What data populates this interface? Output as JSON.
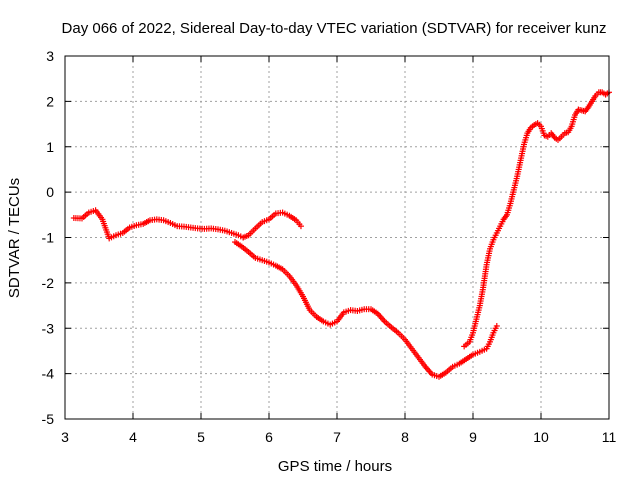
{
  "chart_data": {
    "type": "scatter",
    "title": "Day 066 of 2022, Sidereal Day-to-day VTEC variation (SDTVAR) for receiver kunz",
    "xlabel": "GPS time / hours",
    "ylabel": "SDTVAR / TECUs",
    "xlim": [
      3,
      11
    ],
    "ylim": [
      -5,
      3
    ],
    "xticks": [
      "3",
      "4",
      "5",
      "6",
      "7",
      "8",
      "9",
      "10",
      "11"
    ],
    "yticks": [
      "-5",
      "-4",
      "-3",
      "-2",
      "-1",
      "0",
      "1",
      "2",
      "3"
    ],
    "grid": true,
    "marker": "plus",
    "color": "#ff0000",
    "series": [
      {
        "x": [
          3.13,
          3.25,
          3.35,
          3.45,
          3.55,
          3.65,
          3.75,
          3.85,
          3.95,
          4.05,
          4.15,
          4.25,
          4.35,
          4.45,
          4.55,
          4.65,
          4.75,
          4.85,
          4.95,
          5.05,
          5.15,
          5.25,
          5.35,
          5.45,
          5.55,
          5.62
        ],
        "y": [
          -0.57,
          -0.58,
          -0.45,
          -0.4,
          -0.6,
          -1.02,
          -0.95,
          -0.9,
          -0.78,
          -0.73,
          -0.7,
          -0.62,
          -0.6,
          -0.62,
          -0.68,
          -0.75,
          -0.76,
          -0.78,
          -0.8,
          -0.81,
          -0.8,
          -0.82,
          -0.85,
          -0.9,
          -0.95,
          -1.0
        ]
      },
      {
        "x": [
          5.62,
          5.7,
          5.8,
          5.9,
          6.0,
          6.1,
          6.2,
          6.3,
          6.4,
          6.47
        ],
        "y": [
          -1.0,
          -0.95,
          -0.8,
          -0.66,
          -0.6,
          -0.47,
          -0.45,
          -0.52,
          -0.62,
          -0.75
        ]
      },
      {
        "x": [
          5.5,
          5.6,
          5.7,
          5.8,
          5.9,
          6.0,
          6.1,
          6.2,
          6.3,
          6.4,
          6.5,
          6.6,
          6.7,
          6.8,
          6.9,
          7.0,
          7.1,
          7.2,
          7.3,
          7.4,
          7.5,
          7.6,
          7.7,
          7.8,
          7.9,
          8.0,
          8.1,
          8.2,
          8.3,
          8.4,
          8.5,
          8.6,
          8.7,
          8.8,
          8.9,
          9.0,
          9.1,
          9.2,
          9.25,
          9.3,
          9.35
        ],
        "y": [
          -1.1,
          -1.2,
          -1.32,
          -1.45,
          -1.5,
          -1.55,
          -1.62,
          -1.7,
          -1.85,
          -2.05,
          -2.3,
          -2.6,
          -2.75,
          -2.85,
          -2.92,
          -2.85,
          -2.65,
          -2.6,
          -2.62,
          -2.58,
          -2.58,
          -2.68,
          -2.85,
          -2.98,
          -3.1,
          -3.25,
          -3.45,
          -3.65,
          -3.85,
          -4.02,
          -4.07,
          -3.98,
          -3.85,
          -3.78,
          -3.68,
          -3.58,
          -3.52,
          -3.45,
          -3.3,
          -3.1,
          -2.95
        ]
      },
      {
        "x": [
          8.87,
          8.95,
          9.0,
          9.05,
          9.1,
          9.15,
          9.2,
          9.25,
          9.3,
          9.35,
          9.4,
          9.45,
          9.5,
          9.55,
          9.6,
          9.65,
          9.7,
          9.75,
          9.8,
          9.85,
          9.9,
          9.95,
          10.0,
          10.05,
          10.1,
          10.15,
          10.2,
          10.25,
          10.3,
          10.35,
          10.4,
          10.45,
          10.5,
          10.55,
          10.6,
          10.65,
          10.7,
          10.75,
          10.8,
          10.85,
          10.9,
          10.95,
          11.0
        ],
        "y": [
          -3.4,
          -3.3,
          -3.1,
          -2.8,
          -2.5,
          -2.1,
          -1.6,
          -1.25,
          -1.05,
          -0.9,
          -0.75,
          -0.6,
          -0.5,
          -0.25,
          0.05,
          0.35,
          0.7,
          1.05,
          1.3,
          1.42,
          1.48,
          1.52,
          1.45,
          1.25,
          1.22,
          1.3,
          1.2,
          1.15,
          1.22,
          1.3,
          1.32,
          1.45,
          1.7,
          1.82,
          1.8,
          1.78,
          1.88,
          2.0,
          2.12,
          2.2,
          2.2,
          2.15,
          2.2
        ]
      }
    ]
  }
}
